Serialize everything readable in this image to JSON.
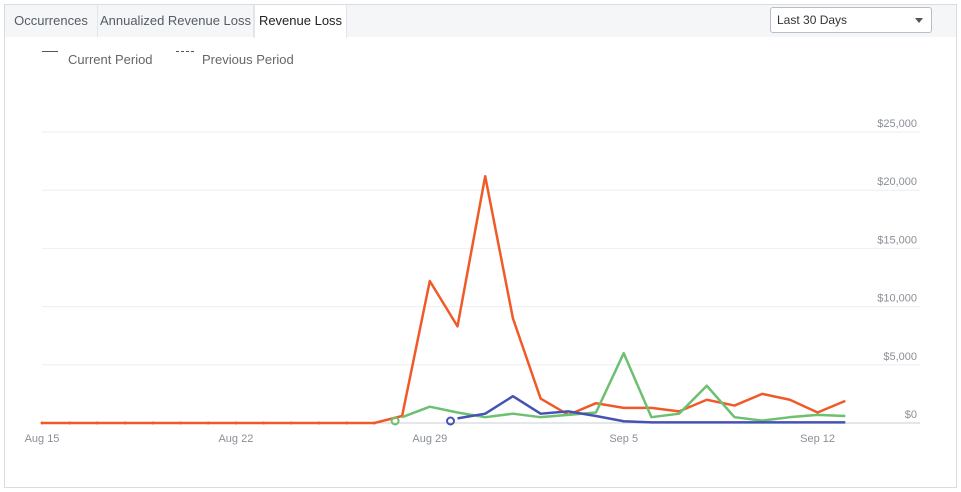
{
  "tabs": [
    {
      "label": "Occurrences"
    },
    {
      "label": "Annualized Revenue Loss"
    },
    {
      "label": "Revenue Loss"
    }
  ],
  "active_tab": "Revenue Loss",
  "range_select": {
    "value": "Last 30 Days"
  },
  "legend": {
    "current": "Current Period",
    "previous": "Previous Period"
  },
  "colors": {
    "orange": "#f05a28",
    "green": "#6cc070",
    "blue": "#4652b3"
  },
  "chart_data": {
    "type": "line",
    "x": [
      "Aug 15",
      "Aug 16",
      "Aug 17",
      "Aug 18",
      "Aug 19",
      "Aug 20",
      "Aug 21",
      "Aug 22",
      "Aug 23",
      "Aug 24",
      "Aug 25",
      "Aug 26",
      "Aug 27",
      "Aug 28",
      "Aug 29",
      "Aug 30",
      "Aug 31",
      "Sep 1",
      "Sep 2",
      "Sep 3",
      "Sep 4",
      "Sep 5",
      "Sep 6",
      "Sep 7",
      "Sep 8",
      "Sep 9",
      "Sep 10",
      "Sep 11",
      "Sep 12",
      "Sep 13"
    ],
    "x_tick_labels": [
      "Aug 15",
      "Aug 22",
      "Aug 29",
      "Sep 5",
      "Sep 12"
    ],
    "y_tick_labels": [
      "$0",
      "$5,000",
      "$10,000",
      "$15,000",
      "$20,000",
      "$25,000"
    ],
    "ylim": [
      0,
      25000
    ],
    "series": [
      {
        "color": "#f05a28",
        "values": [
          0,
          0,
          0,
          0,
          0,
          0,
          0,
          0,
          0,
          0,
          0,
          0,
          0,
          600,
          12200,
          8300,
          21200,
          9000,
          2100,
          700,
          1700,
          1300,
          1300,
          1000,
          2000,
          1500,
          2500,
          2000,
          900,
          1900
        ]
      },
      {
        "color": "#6cc070",
        "values": [
          null,
          null,
          null,
          null,
          null,
          null,
          null,
          null,
          null,
          null,
          null,
          null,
          null,
          500,
          1400,
          900,
          500,
          800,
          500,
          700,
          900,
          6000,
          500,
          800,
          3200,
          500,
          200,
          500,
          700,
          600
        ]
      },
      {
        "color": "#4652b3",
        "values": [
          null,
          null,
          null,
          null,
          null,
          null,
          null,
          null,
          null,
          null,
          null,
          null,
          null,
          null,
          null,
          400,
          800,
          2300,
          800,
          1000,
          600,
          150,
          50,
          50,
          50,
          50,
          50,
          50,
          50,
          50
        ]
      }
    ]
  }
}
